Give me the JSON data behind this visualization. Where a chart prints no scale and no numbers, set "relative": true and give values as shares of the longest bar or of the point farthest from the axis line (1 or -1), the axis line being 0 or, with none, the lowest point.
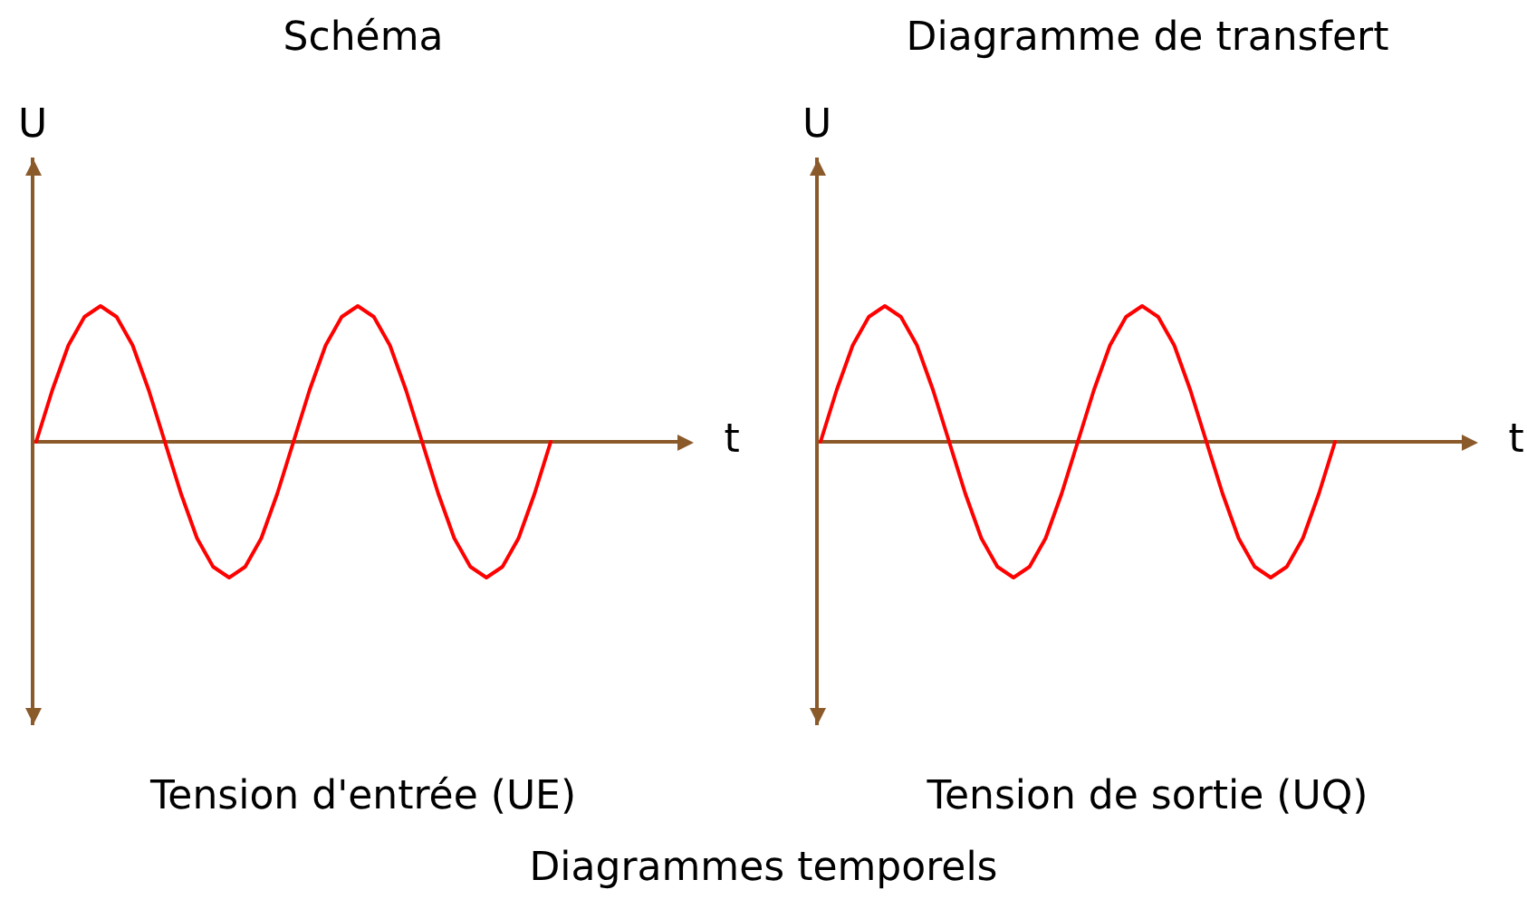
{
  "chart_data": [
    {
      "type": "line",
      "title": "Schéma",
      "xlabel": "t",
      "ylabel": "U",
      "relative": true,
      "categories": [
        null,
        null,
        null,
        null,
        null,
        null,
        null,
        null,
        null,
        null,
        null,
        null,
        null,
        null,
        null,
        null,
        null,
        null,
        null,
        null,
        null,
        null,
        null,
        null,
        null,
        null,
        null,
        null,
        null,
        null,
        null,
        null,
        null
      ],
      "series": [
        {
          "color": "#ff0000",
          "values": [
            0,
            0.38,
            0.71,
            0.92,
            1,
            0.92,
            0.71,
            0.38,
            0,
            -0.38,
            -0.71,
            -0.92,
            -1,
            -0.92,
            -0.71,
            -0.38,
            0,
            0.38,
            0.71,
            0.92,
            1,
            0.92,
            0.71,
            0.38,
            0,
            -0.38,
            -0.71,
            -0.92,
            -1,
            -0.92,
            -0.71,
            -0.38,
            0
          ]
        }
      ],
      "ref_lines": [
        {
          "axis": "y",
          "value": 0,
          "color": "#8b5a2b"
        }
      ],
      "annotations": [
        "Tension d'entrée (UE)",
        "Diagrammes temporels"
      ]
    },
    {
      "type": "line",
      "title": "Diagramme de transfert",
      "xlabel": "t",
      "ylabel": "U",
      "relative": true,
      "categories": [
        null,
        null,
        null,
        null,
        null,
        null,
        null,
        null,
        null,
        null,
        null,
        null,
        null,
        null,
        null,
        null,
        null,
        null,
        null,
        null,
        null,
        null,
        null,
        null,
        null,
        null,
        null,
        null,
        null,
        null,
        null,
        null,
        null
      ],
      "series": [
        {
          "color": "#ff0000",
          "values": [
            0,
            0.38,
            0.71,
            0.92,
            1,
            0.92,
            0.71,
            0.38,
            0,
            -0.38,
            -0.71,
            -0.92,
            -1,
            -0.92,
            -0.71,
            -0.38,
            0,
            0.38,
            0.71,
            0.92,
            1,
            0.92,
            0.71,
            0.38,
            0,
            -0.38,
            -0.71,
            -0.92,
            -1,
            -0.92,
            -0.71,
            -0.38,
            0
          ]
        }
      ],
      "ref_lines": [
        {
          "axis": "y",
          "value": 0,
          "color": "#8b5a2b"
        }
      ],
      "annotations": [
        "Tension de sortie (UQ)"
      ]
    }
  ]
}
